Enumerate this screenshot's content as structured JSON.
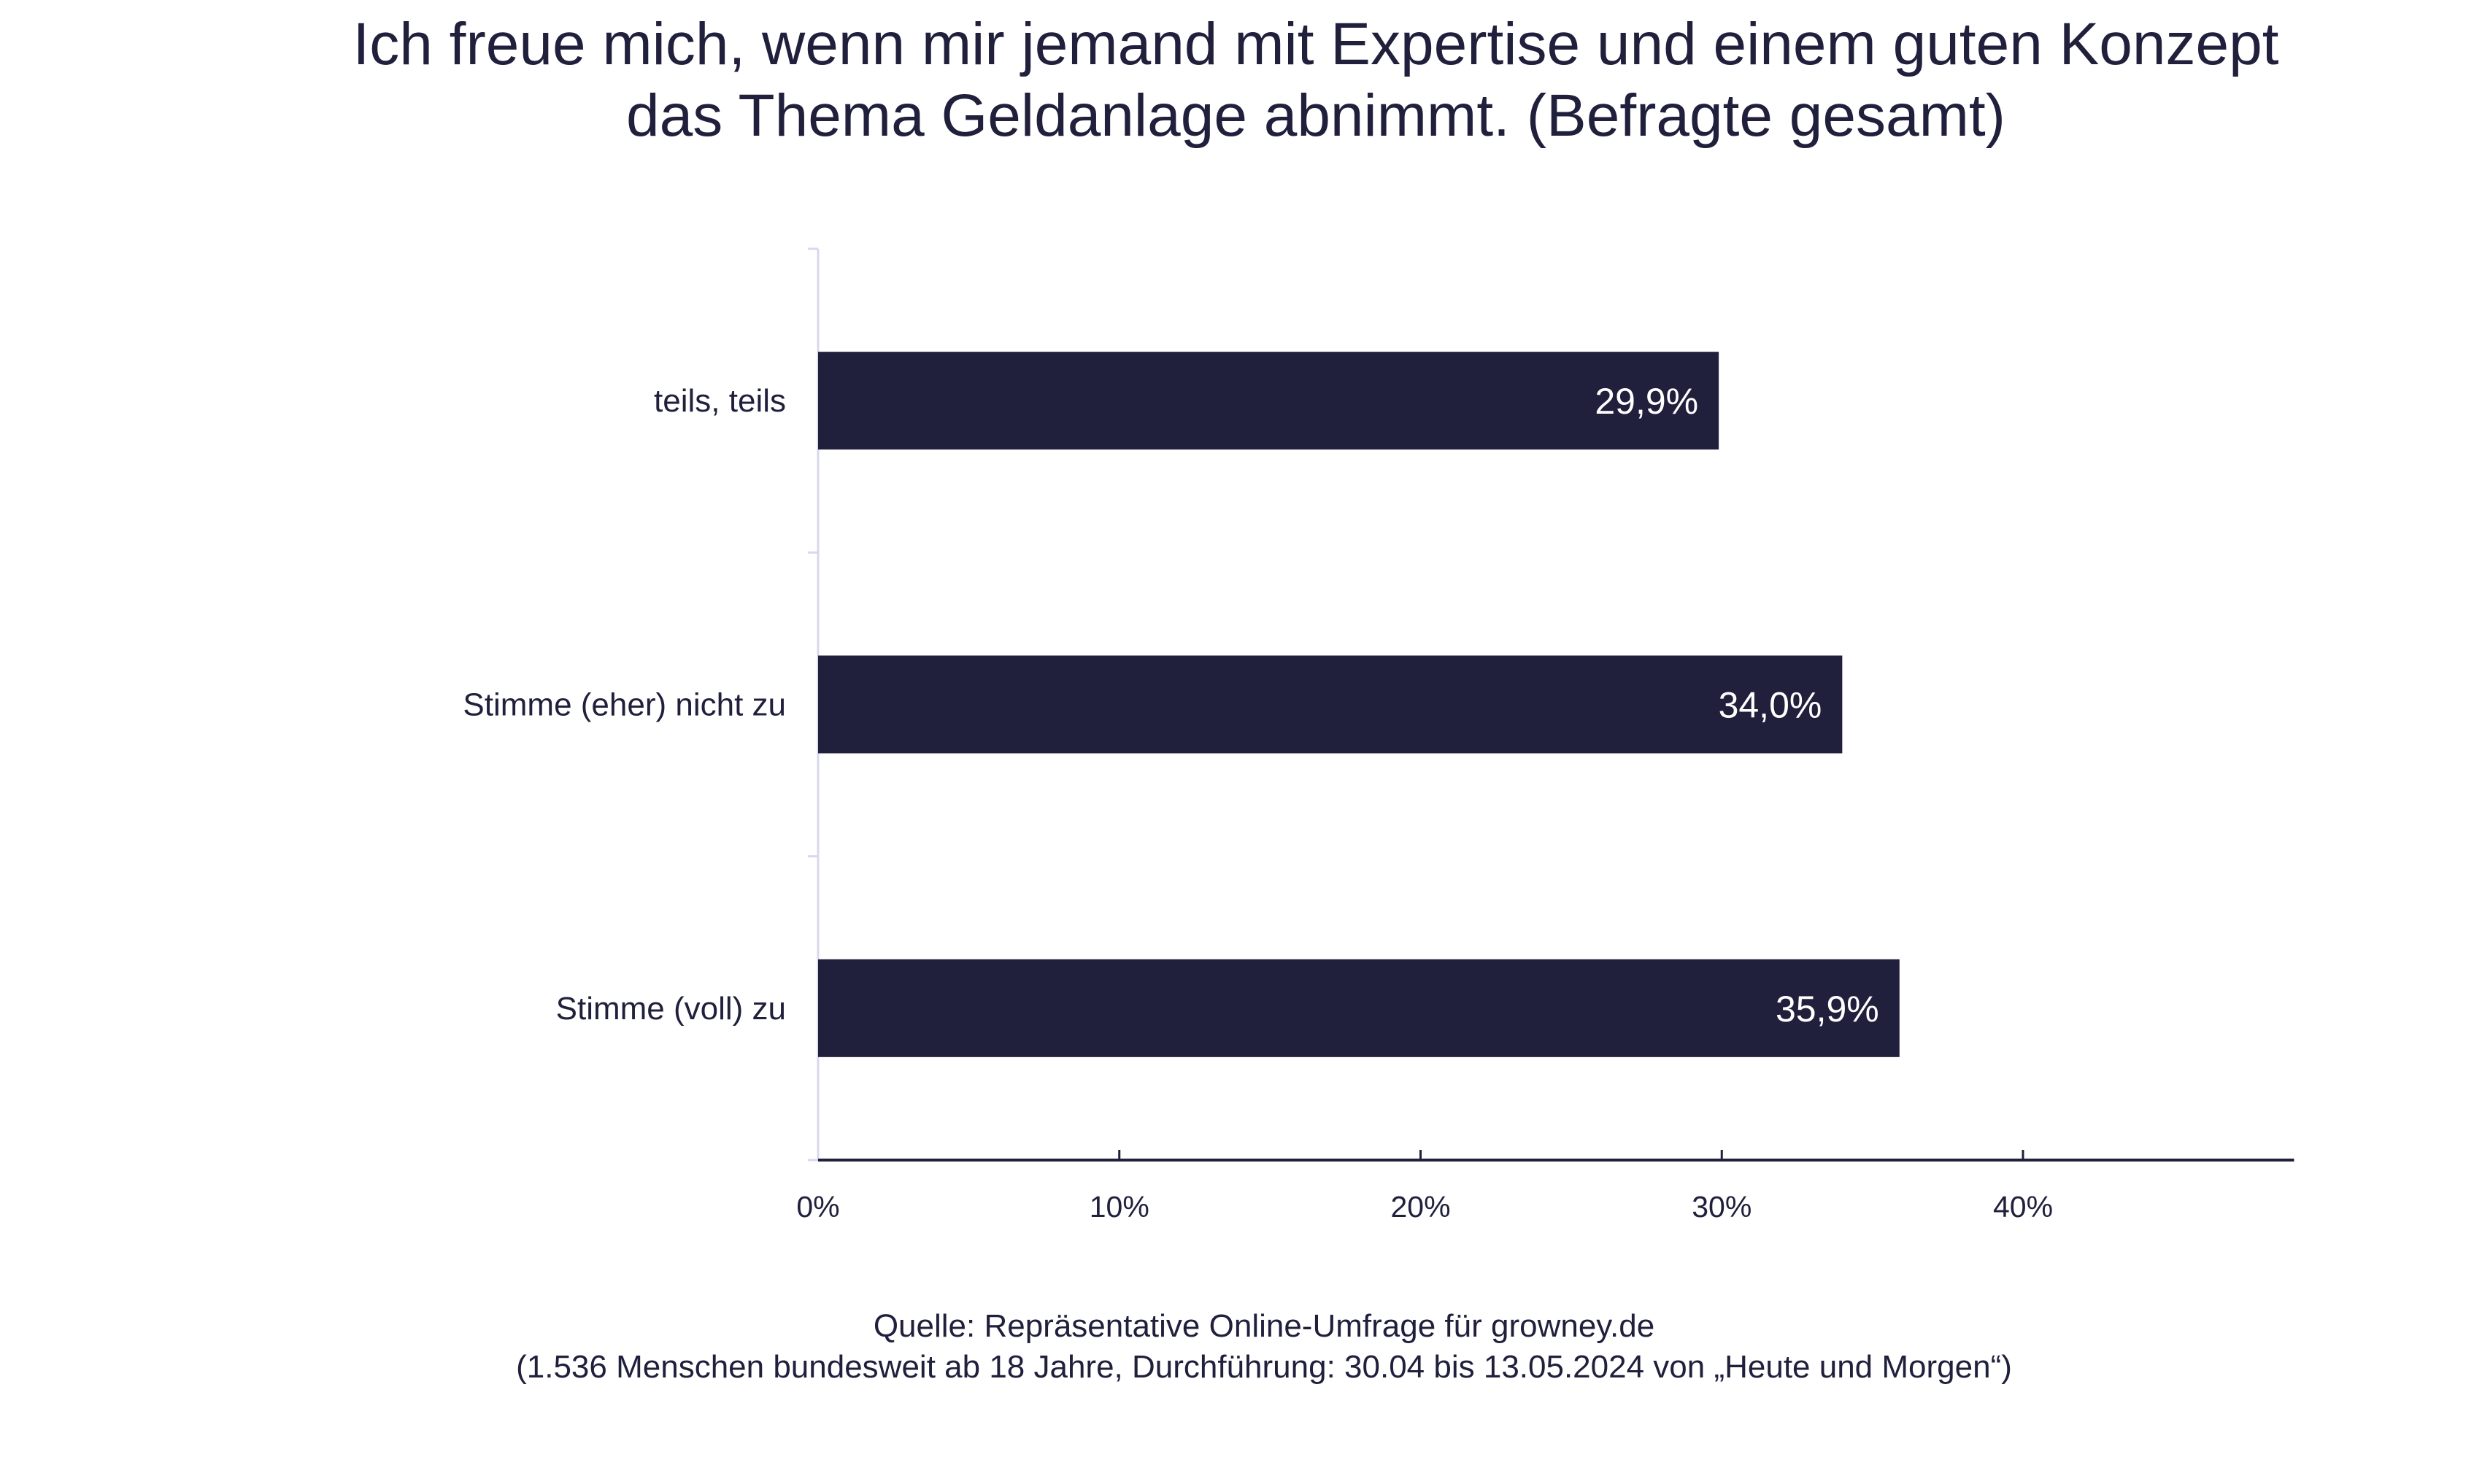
{
  "chart_data": {
    "type": "bar",
    "orientation": "horizontal",
    "title": "Ich freue mich, wenn mir jemand mit Expertise und einem guten Konzept das Thema Geldanlage abnimmt. (Befragte gesamt)",
    "title_lines": [
      "Ich freue mich, wenn mir jemand mit Expertise und einem guten Konzept",
      "das Thema Geldanlage abnimmt. (Befragte gesamt)"
    ],
    "categories": [
      "teils, teils",
      "Stimme (eher) nicht zu",
      "Stimme (voll) zu"
    ],
    "values": [
      29.9,
      34.0,
      35.9
    ],
    "data_labels": [
      "29,9%",
      "34,0%",
      "35,9%"
    ],
    "xlim": [
      0,
      49
    ],
    "xticks": [
      0,
      10,
      20,
      30,
      40
    ],
    "xtick_labels": [
      "0%",
      "10%",
      "20%",
      "30%",
      "40%"
    ],
    "xlabel": "",
    "ylabel": "",
    "grid": false,
    "colors": {
      "bar": "#20203d",
      "label": "#ffffff",
      "y_axis": "#d8d8ec",
      "x_axis": "#20203d"
    }
  },
  "source": {
    "line1": "Quelle: Repräsentative Online-Umfrage für growney.de",
    "line2": "(1.536 Menschen bundesweit ab 18 Jahre, Durchführung: 30.04 bis 13.05.2024 von „Heute und Morgen“)"
  }
}
